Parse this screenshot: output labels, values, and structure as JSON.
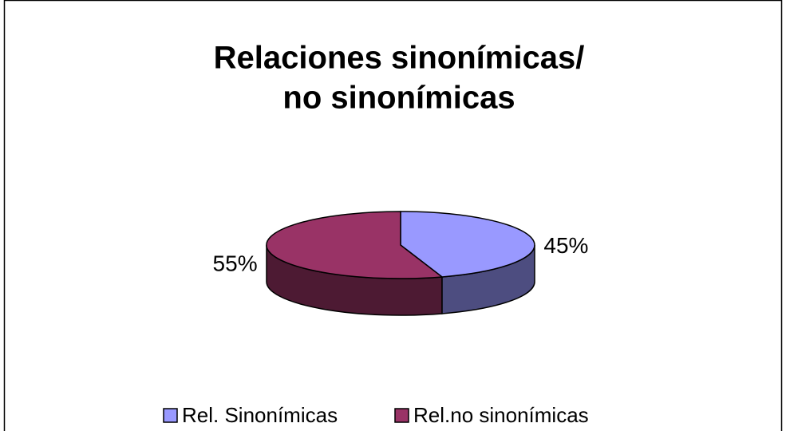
{
  "chart_data": {
    "type": "pie3d",
    "title": [
      "Relaciones sinonímicas/",
      "no sinonímicas"
    ],
    "categories": [
      "Rel. Sinonímicas",
      "Rel.no sinonímicas"
    ],
    "values": [
      45,
      55
    ],
    "value_labels": [
      "45%",
      "55%"
    ],
    "colors": [
      "#9999ff",
      "#993366"
    ],
    "legend": "bottom"
  }
}
